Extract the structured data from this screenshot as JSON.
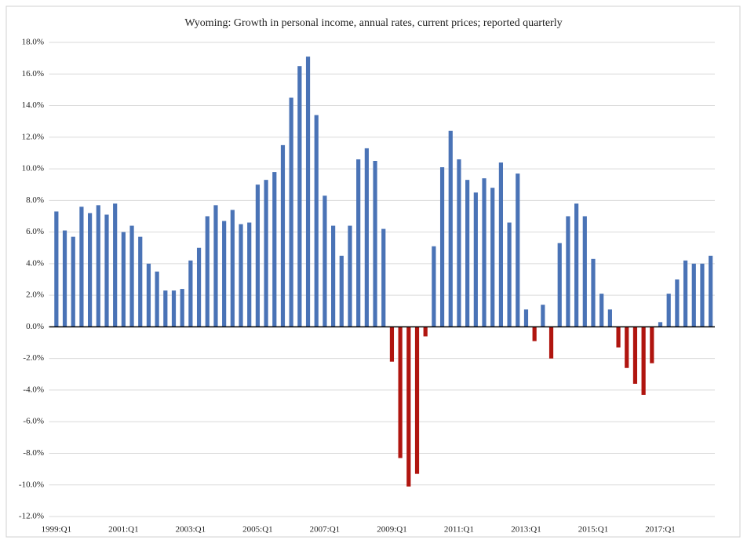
{
  "chart_data": {
    "type": "bar",
    "title": "Wyoming: Growth in personal income, annual rates, current prices; reported quarterly",
    "categories": [
      "1999:Q1",
      null,
      null,
      null,
      null,
      null,
      null,
      null,
      "2001:Q1",
      null,
      null,
      null,
      null,
      null,
      null,
      null,
      "2003:Q1",
      null,
      null,
      null,
      null,
      null,
      null,
      null,
      "2005:Q1",
      null,
      null,
      null,
      null,
      null,
      null,
      null,
      "2007:Q1",
      null,
      null,
      null,
      null,
      null,
      null,
      null,
      "2009:Q1",
      null,
      null,
      null,
      null,
      null,
      null,
      null,
      "2011:Q1",
      null,
      null,
      null,
      null,
      null,
      null,
      null,
      "2013:Q1",
      null,
      null,
      null,
      null,
      null,
      null,
      null,
      "2015:Q1",
      null,
      null,
      null,
      null,
      null,
      null,
      null,
      "2017:Q1",
      null,
      null,
      null,
      null,
      null,
      null
    ],
    "values": [
      7.3,
      6.1,
      5.7,
      7.6,
      7.2,
      7.7,
      7.1,
      7.8,
      6.0,
      6.4,
      5.7,
      4.0,
      3.5,
      2.3,
      2.3,
      2.4,
      4.2,
      5.0,
      7.0,
      7.7,
      6.7,
      7.4,
      6.5,
      6.6,
      9.0,
      9.3,
      9.8,
      11.5,
      14.5,
      16.5,
      17.1,
      13.4,
      8.3,
      6.4,
      4.5,
      6.4,
      10.6,
      11.3,
      10.5,
      6.2,
      -2.2,
      -8.3,
      -10.1,
      -9.3,
      -0.6,
      5.1,
      10.1,
      12.4,
      10.6,
      9.3,
      8.5,
      9.4,
      8.8,
      10.4,
      6.6,
      9.7,
      1.1,
      -0.9,
      1.4,
      -2.0,
      5.3,
      7.0,
      7.8,
      7.0,
      4.3,
      2.1,
      1.1,
      -1.3,
      -2.6,
      -3.6,
      -4.3,
      -2.3,
      0.3,
      2.1,
      3.0,
      4.2,
      4.0,
      4.0,
      4.5
    ],
    "color": "#4a73b6",
    "negative_color": "#b0150f",
    "ylim": [
      -12,
      18
    ],
    "yticks": [
      {
        "value": -12,
        "label": "-12.0%"
      },
      {
        "value": -10,
        "label": "-10.0%"
      },
      {
        "value": -8,
        "label": "-8.0%"
      },
      {
        "value": -6,
        "label": "-6.0%"
      },
      {
        "value": -4,
        "label": "-4.0%"
      },
      {
        "value": -2,
        "label": "-2.0%"
      },
      {
        "value": 0,
        "label": "0.0%"
      },
      {
        "value": 2,
        "label": "2.0%"
      },
      {
        "value": 4,
        "label": "4.0%"
      },
      {
        "value": 6,
        "label": "6.0%"
      },
      {
        "value": 8,
        "label": "8.0%"
      },
      {
        "value": 10,
        "label": "10.0%"
      },
      {
        "value": 12,
        "label": "12.0%"
      },
      {
        "value": 14,
        "label": "14.0%"
      },
      {
        "value": 16,
        "label": "16.0%"
      },
      {
        "value": 18,
        "label": "18.0%"
      }
    ],
    "grid": true
  }
}
